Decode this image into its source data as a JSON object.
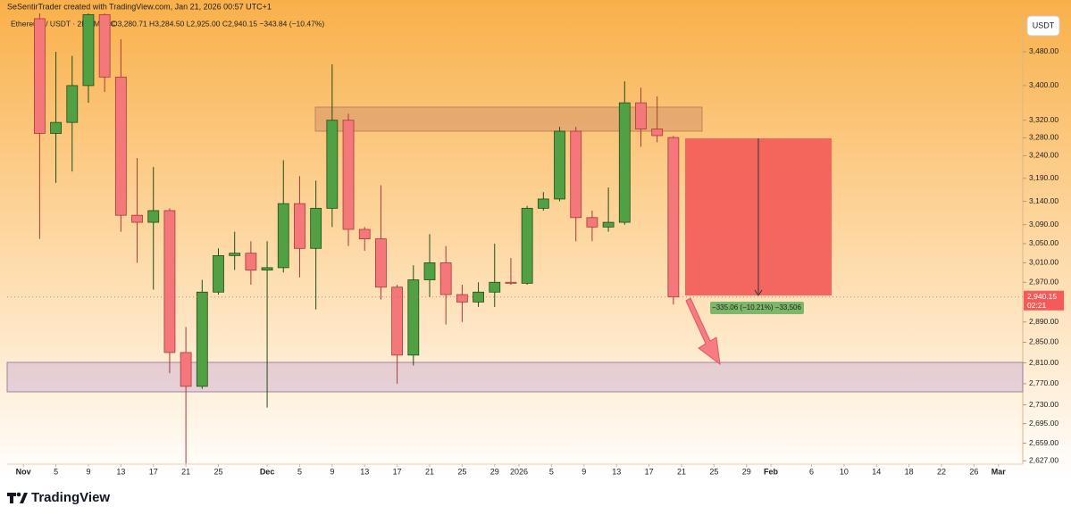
{
  "chart_data": {
    "type": "candlestick",
    "credit": "SeSentirTrader created with TradingView.com, Jan 21, 2026 00:57 UTC+1",
    "symbol": "Ethereum / USDT · 2D · MEXC",
    "ohlc_text": "O3,280.71 H3,284.50 L2,925.00 C2,940.15 −343.84 (−10.47%)",
    "currency": "USDT",
    "brand": "TradingView",
    "measure_label": "−335.06 (−10.21%) −33,506",
    "countdown": "02:21",
    "last_price": {
      "value": 2940.15,
      "label": "2,940.15"
    },
    "up_color": "#52a044",
    "down_color": "#f4777a",
    "log_scale": true,
    "x": [
      "2025-11-03",
      "2025-11-05",
      "2025-11-07",
      "2025-11-09",
      "2025-11-11",
      "2025-11-13",
      "2025-11-15",
      "2025-11-17",
      "2025-11-19",
      "2025-11-21",
      "2025-11-23",
      "2025-11-25",
      "2025-11-27",
      "2025-11-29",
      "2025-12-01",
      "2025-12-03",
      "2025-12-05",
      "2025-12-07",
      "2025-12-09",
      "2025-12-11",
      "2025-12-13",
      "2025-12-15",
      "2025-12-17",
      "2025-12-19",
      "2025-12-21",
      "2025-12-23",
      "2025-12-25",
      "2025-12-27",
      "2025-12-29",
      "2025-12-31",
      "2026-01-02",
      "2026-01-04",
      "2026-01-06",
      "2026-01-08",
      "2026-01-10",
      "2026-01-12",
      "2026-01-14",
      "2026-01-16",
      "2026-01-18",
      "2026-01-20"
    ],
    "open": [
      3560,
      3290,
      3315,
      3400,
      3570,
      3420,
      3110,
      3095,
      3120,
      2830,
      2765,
      2950,
      3025,
      3030,
      2995,
      3000,
      3135,
      3040,
      3125,
      3320,
      3080,
      3060,
      2960,
      2825,
      2975,
      3010,
      2945,
      2930,
      2950,
      2970,
      2968,
      3125,
      3145,
      3295,
      3105,
      3085,
      3095,
      3360,
      3300,
      3280.71
    ],
    "high": [
      3580,
      3480,
      3470,
      3600,
      3600,
      3510,
      3235,
      3215,
      3125,
      2880,
      2975,
      3040,
      3075,
      3055,
      3055,
      3230,
      3195,
      3185,
      3450,
      3335,
      3085,
      3175,
      2965,
      3005,
      3070,
      3045,
      2965,
      2970,
      3050,
      3020,
      3130,
      3160,
      3305,
      3305,
      3120,
      3170,
      3410,
      3395,
      3375,
      3284.5
    ],
    "low": [
      3060,
      3180,
      3205,
      3360,
      3385,
      3075,
      3010,
      2955,
      2790,
      2622,
      2760,
      2945,
      2995,
      2965,
      2725,
      2990,
      2980,
      2915,
      3085,
      3045,
      3035,
      2935,
      2770,
      2805,
      2940,
      2885,
      2890,
      2920,
      2920,
      2965,
      2965,
      3120,
      3140,
      3055,
      3055,
      3075,
      3090,
      3260,
      3270,
      2925
    ],
    "close": [
      3290,
      3315,
      3400,
      3570,
      3420,
      3110,
      3095,
      3120,
      2830,
      2765,
      2950,
      3025,
      3030,
      2995,
      3000,
      3135,
      3040,
      3125,
      3320,
      3080,
      3060,
      2960,
      2825,
      2975,
      3010,
      2945,
      2930,
      2950,
      2970,
      2968,
      3125,
      3145,
      3295,
      3105,
      3085,
      3095,
      3360,
      3300,
      3285,
      2940.15
    ],
    "xlim": [
      "2025-10-30",
      "2026-03-04"
    ],
    "ylim": [
      2621,
      3573
    ],
    "yticks": [
      {
        "value": 3480,
        "label": "3,480.00"
      },
      {
        "value": 3400,
        "label": "3,400.00"
      },
      {
        "value": 3320,
        "label": "3,320.00"
      },
      {
        "value": 3280,
        "label": "3,280.00"
      },
      {
        "value": 3240,
        "label": "3,240.00"
      },
      {
        "value": 3190,
        "label": "3,190.00"
      },
      {
        "value": 3140,
        "label": "3,140.00"
      },
      {
        "value": 3090,
        "label": "3,090.00"
      },
      {
        "value": 3050,
        "label": "3,050.00"
      },
      {
        "value": 3010,
        "label": "3,010.00"
      },
      {
        "value": 2970,
        "label": "2,970.00"
      },
      {
        "value": 2890,
        "label": "2,890.00"
      },
      {
        "value": 2850,
        "label": "2,850.00"
      },
      {
        "value": 2810,
        "label": "2,810.00"
      },
      {
        "value": 2770,
        "label": "2,770.00"
      },
      {
        "value": 2730,
        "label": "2,730.00"
      },
      {
        "value": 2695,
        "label": "2,695.00"
      },
      {
        "value": 2659,
        "label": "2,659.00"
      },
      {
        "value": 2627,
        "label": "2,627.00"
      }
    ],
    "xticks": [
      {
        "value": "2025-11-01",
        "label": "Nov"
      },
      {
        "value": "2025-11-05",
        "label": "5"
      },
      {
        "value": "2025-11-09",
        "label": "9"
      },
      {
        "value": "2025-11-13",
        "label": "13"
      },
      {
        "value": "2025-11-17",
        "label": "17"
      },
      {
        "value": "2025-11-21",
        "label": "21"
      },
      {
        "value": "2025-11-25",
        "label": "25"
      },
      {
        "value": "2025-12-01",
        "label": "Dec"
      },
      {
        "value": "2025-12-05",
        "label": "5"
      },
      {
        "value": "2025-12-09",
        "label": "9"
      },
      {
        "value": "2025-12-13",
        "label": "13"
      },
      {
        "value": "2025-12-17",
        "label": "17"
      },
      {
        "value": "2025-12-21",
        "label": "21"
      },
      {
        "value": "2025-12-25",
        "label": "25"
      },
      {
        "value": "2025-12-29",
        "label": "29"
      },
      {
        "value": "2026-01-01",
        "label": "2026"
      },
      {
        "value": "2026-01-05",
        "label": "5"
      },
      {
        "value": "2026-01-09",
        "label": "9"
      },
      {
        "value": "2026-01-13",
        "label": "13"
      },
      {
        "value": "2026-01-17",
        "label": "17"
      },
      {
        "value": "2026-01-21",
        "label": "21"
      },
      {
        "value": "2026-01-25",
        "label": "25"
      },
      {
        "value": "2026-01-29",
        "label": "29"
      },
      {
        "value": "2026-02-01",
        "label": "Feb"
      },
      {
        "value": "2026-02-06",
        "label": "6"
      },
      {
        "value": "2026-02-10",
        "label": "10"
      },
      {
        "value": "2026-02-14",
        "label": "14"
      },
      {
        "value": "2026-02-18",
        "label": "18"
      },
      {
        "value": "2026-02-22",
        "label": "22"
      },
      {
        "value": "2026-02-26",
        "label": "26"
      },
      {
        "value": "2026-03-01",
        "label": "Mar"
      }
    ]
  }
}
